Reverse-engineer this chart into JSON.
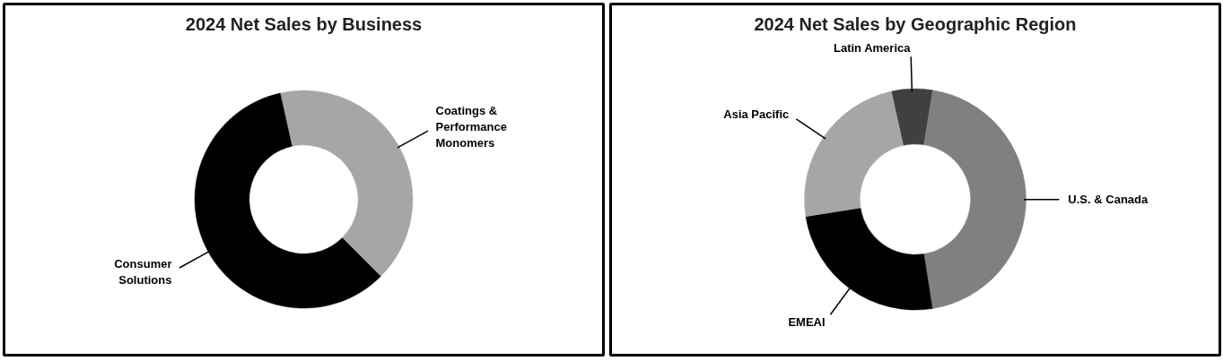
{
  "chart_data": [
    {
      "type": "donut",
      "title": "2024 Net Sales by Business",
      "categories": [
        "Coatings & Performance Monomers",
        "Consumer Solutions"
      ],
      "values": [
        41,
        59
      ],
      "colors": [
        "#a6a6a6",
        "#000000"
      ]
    },
    {
      "type": "donut",
      "title": "2024 Net Sales by Geographic Region",
      "categories": [
        "Latin America",
        "U.S. & Canada",
        "EMEAI",
        "Asia Pacific"
      ],
      "values": [
        6,
        45,
        25,
        24
      ],
      "colors": [
        "#404040",
        "#808080",
        "#000000",
        "#a6a6a6"
      ]
    }
  ]
}
